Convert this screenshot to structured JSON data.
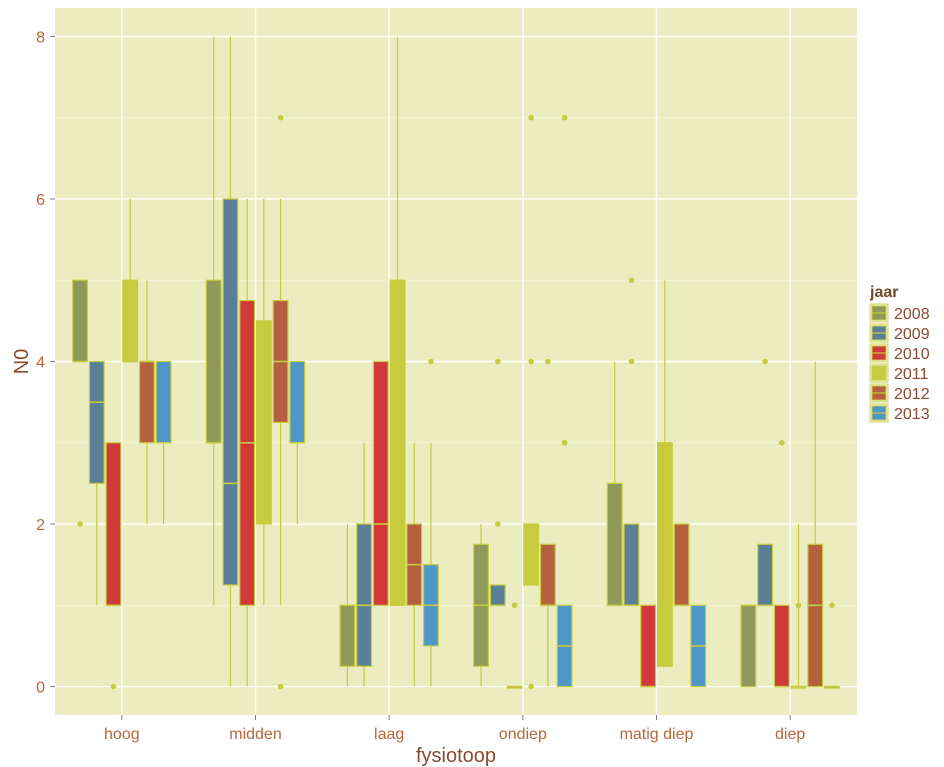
{
  "chart_data": {
    "type": "boxplot",
    "xlabel": "fysiotoop",
    "ylabel": "N0",
    "ylim": [
      -0.35,
      8.35
    ],
    "yticks": [
      0,
      2,
      4,
      6,
      8
    ],
    "categories": [
      "hoog",
      "midden",
      "laag",
      "ondiep",
      "matig diep",
      "diep"
    ],
    "grid": true,
    "legend": {
      "title": "jaar",
      "position": "right"
    },
    "series": [
      {
        "name": "2008",
        "color": "#8f9a5a",
        "boxes": [
          {
            "whislo": 4,
            "q1": 4,
            "med": 4,
            "q3": 5,
            "whishi": 5,
            "outliers": [
              2
            ]
          },
          {
            "whislo": 1,
            "q1": 3,
            "med": 3,
            "q3": 5,
            "whishi": 8,
            "outliers": []
          },
          {
            "whislo": 0,
            "q1": 0.25,
            "med": 1,
            "q3": 1,
            "whislo2": 0,
            "whishi": 2,
            "outliers": []
          },
          {
            "whislo": 0,
            "q1": 0.25,
            "med": 1,
            "q3": 1.75,
            "whishi": 2,
            "outliers": []
          },
          {
            "whislo": 1,
            "q1": 1,
            "med": 1,
            "q3": 2.5,
            "whishi": 4,
            "outliers": []
          },
          {
            "whislo": 0,
            "q1": 0,
            "med": 1,
            "q3": 1,
            "whishi": 1,
            "outliers": []
          }
        ]
      },
      {
        "name": "2009",
        "color": "#5b7f96",
        "boxes": [
          {
            "whislo": 1,
            "q1": 2.5,
            "med": 3.5,
            "q3": 4,
            "whishi": 4,
            "outliers": []
          },
          {
            "whislo": 0,
            "q1": 1.25,
            "med": 2.5,
            "q3": 6,
            "whishi": 8,
            "outliers": []
          },
          {
            "whislo": 0,
            "q1": 0.25,
            "med": 1,
            "q3": 2,
            "whishi": 3,
            "outliers": []
          },
          {
            "whislo": 1,
            "q1": 1,
            "med": 1,
            "q3": 1.25,
            "whishi": 1.25,
            "outliers": [
              4,
              2
            ]
          },
          {
            "whislo": 1,
            "q1": 1,
            "med": 1,
            "q3": 2,
            "whishi": 2,
            "outliers": [
              5,
              4
            ]
          },
          {
            "whislo": 1,
            "q1": 1,
            "med": 1,
            "q3": 1.75,
            "whishi": 1.75,
            "outliers": [
              4
            ]
          }
        ]
      },
      {
        "name": "2010",
        "color": "#d1383a",
        "boxes": [
          {
            "whislo": 1,
            "q1": 1,
            "med": 1,
            "q3": 3,
            "whishi": 3,
            "outliers": [
              0
            ]
          },
          {
            "whislo": 0,
            "q1": 1,
            "med": 3,
            "q3": 4.75,
            "whishi": 6,
            "outliers": []
          },
          {
            "whislo": 1,
            "q1": 1,
            "med": 2,
            "q3": 4,
            "whishi": 4,
            "outliers": []
          },
          {
            "whislo": 0,
            "q1": 0,
            "med": 0,
            "q3": 0,
            "whishi": 0,
            "outliers": [
              1
            ]
          },
          {
            "whislo": 0,
            "q1": 0,
            "med": 0,
            "q3": 1,
            "whishi": 1,
            "outliers": []
          },
          {
            "whislo": 0,
            "q1": 0,
            "med": 0,
            "q3": 1,
            "whishi": 1,
            "outliers": [
              3
            ]
          }
        ]
      },
      {
        "name": "2011",
        "color": "#c7cc3e",
        "boxes": [
          {
            "whislo": 4,
            "q1": 4,
            "med": 4,
            "q3": 5,
            "whishi": 6,
            "outliers": []
          },
          {
            "whislo": 1,
            "q1": 2,
            "med": 2.5,
            "q3": 4.5,
            "whishi": 6,
            "outliers": []
          },
          {
            "whislo": 1,
            "q1": 1,
            "med": 3,
            "q3": 5,
            "whishi": 8,
            "outliers": []
          },
          {
            "whislo": 1.25,
            "q1": 1.25,
            "med": 1.5,
            "q3": 2,
            "whishi": 2,
            "outliers": [
              7,
              4,
              0
            ]
          },
          {
            "whislo": 0.25,
            "q1": 0.25,
            "med": 1.5,
            "q3": 3,
            "whishi": 5,
            "outliers": []
          },
          {
            "whislo": 0,
            "q1": 0,
            "med": 0,
            "q3": 0,
            "whishi": 2,
            "outliers": [
              1
            ]
          }
        ]
      },
      {
        "name": "2012",
        "color": "#b5603e",
        "boxes": [
          {
            "whislo": 2,
            "q1": 3,
            "med": 4,
            "q3": 4,
            "whishi": 5,
            "outliers": []
          },
          {
            "whislo": 1,
            "q1": 3.25,
            "med": 4,
            "q3": 4.75,
            "whishi": 6,
            "outliers": [
              7,
              0
            ]
          },
          {
            "whislo": 0,
            "q1": 1,
            "med": 1.5,
            "q3": 2,
            "whishi": 3,
            "outliers": []
          },
          {
            "whislo": 0,
            "q1": 1,
            "med": 1,
            "q3": 1.75,
            "whishi": 1.75,
            "outliers": [
              4
            ]
          },
          {
            "whislo": 1,
            "q1": 1,
            "med": 1,
            "q3": 2,
            "whishi": 2,
            "outliers": []
          },
          {
            "whislo": 0,
            "q1": 0,
            "med": 1,
            "q3": 1.75,
            "whishi": 4,
            "outliers": []
          }
        ]
      },
      {
        "name": "2013",
        "color": "#4f97c8",
        "boxes": [
          {
            "whislo": 2,
            "q1": 3,
            "med": 3,
            "q3": 4,
            "whishi": 4,
            "outliers": []
          },
          {
            "whislo": 2,
            "q1": 3,
            "med": 3,
            "q3": 4,
            "whishi": 4,
            "outliers": []
          },
          {
            "whislo": 0,
            "q1": 0.5,
            "med": 1,
            "q3": 1.5,
            "whishi": 3,
            "outliers": [
              4
            ]
          },
          {
            "whislo": 0,
            "q1": 0,
            "med": 0.5,
            "q3": 1,
            "whishi": 1,
            "outliers": [
              7,
              3
            ]
          },
          {
            "whislo": 0,
            "q1": 0,
            "med": 0.5,
            "q3": 1,
            "whishi": 1,
            "outliers": []
          },
          {
            "whislo": 0,
            "q1": 0,
            "med": 0,
            "q3": 0,
            "whishi": 0,
            "outliers": [
              1
            ]
          }
        ]
      }
    ]
  },
  "colors": {
    "panel_background": "#ebecc0",
    "grid": "#ffffff",
    "whisker": "#c7cc3e",
    "box_outline": "#c7cc3e"
  }
}
